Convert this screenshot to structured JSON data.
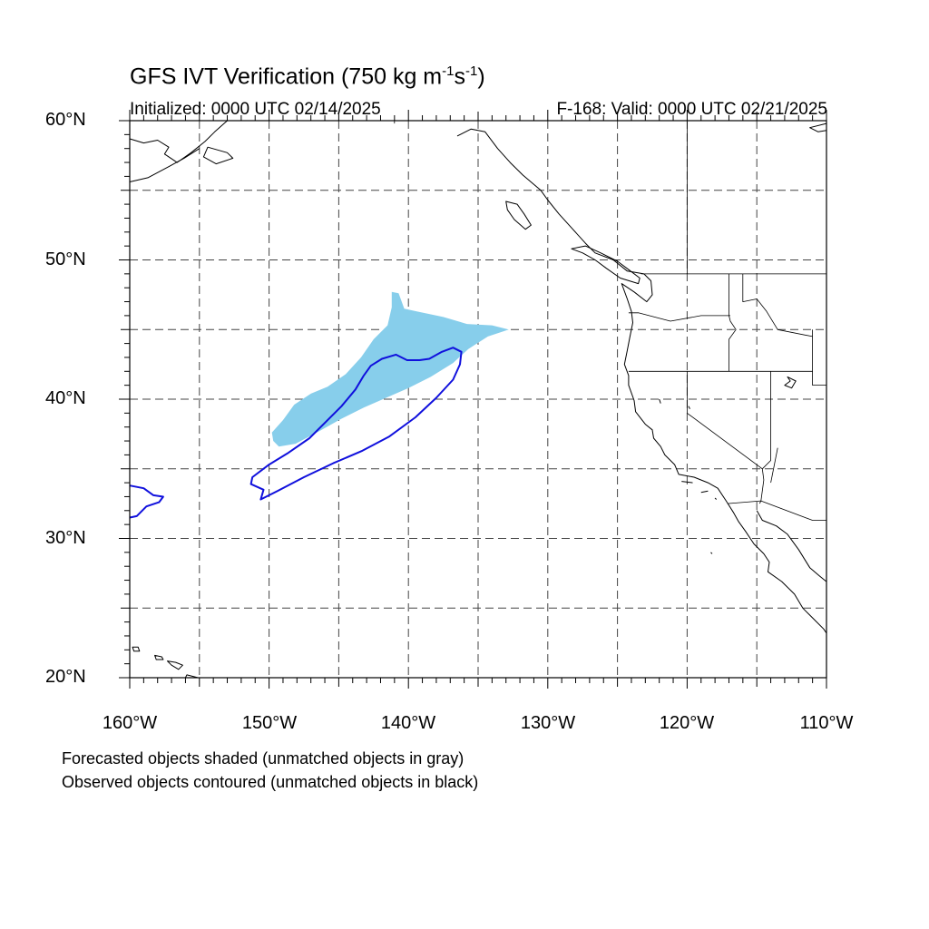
{
  "title": {
    "main": "GFS IVT Verification (750 kg m",
    "exp1": "-1",
    "mid": "s",
    "exp2": "-1",
    "close": ")"
  },
  "init_label": "Initialized: 0000 UTC 02/14/2025",
  "valid_label": "F-168: Valid: 0000 UTC 02/21/2025",
  "lat_labels": [
    "60°N",
    "50°N",
    "40°N",
    "30°N",
    "20°N"
  ],
  "lon_labels": [
    "160°W",
    "150°W",
    "140°W",
    "130°W",
    "120°W",
    "110°W"
  ],
  "footnotes": [
    "Forecasted objects shaded (unmatched objects in gray)",
    "Observed objects contoured (unmatched objects in black)"
  ],
  "map": {
    "lat_range": [
      20,
      60
    ],
    "lon_range": [
      -160,
      -110
    ],
    "grid_lat_step": 5,
    "grid_lon_step": 5,
    "forecast_color": "#87ceeb",
    "observed_color": "#1010dd",
    "coast_color": "#000000",
    "forecast_object": [
      [
        -149.7,
        37.0
      ],
      [
        -149.8,
        37.6
      ],
      [
        -149.0,
        38.5
      ],
      [
        -148.2,
        39.6
      ],
      [
        -147.0,
        40.4
      ],
      [
        -145.8,
        40.9
      ],
      [
        -144.5,
        41.8
      ],
      [
        -143.4,
        43.0
      ],
      [
        -142.5,
        44.3
      ],
      [
        -141.5,
        45.3
      ],
      [
        -141.2,
        46.6
      ],
      [
        -141.2,
        47.7
      ],
      [
        -140.7,
        47.6
      ],
      [
        -140.3,
        46.5
      ],
      [
        -139.4,
        46.3
      ],
      [
        -137.5,
        45.9
      ],
      [
        -135.8,
        45.4
      ],
      [
        -134.0,
        45.3
      ],
      [
        -132.8,
        45.0
      ],
      [
        -134.3,
        44.5
      ],
      [
        -135.7,
        43.6
      ],
      [
        -136.8,
        42.6
      ],
      [
        -138.4,
        41.6
      ],
      [
        -140.0,
        40.8
      ],
      [
        -141.6,
        40.1
      ],
      [
        -143.2,
        39.4
      ],
      [
        -144.8,
        38.6
      ],
      [
        -146.4,
        37.7
      ],
      [
        -148.1,
        36.8
      ],
      [
        -149.3,
        36.6
      ]
    ],
    "observed_object": [
      [
        -151.2,
        34.4
      ],
      [
        -150.0,
        35.3
      ],
      [
        -148.7,
        36.1
      ],
      [
        -147.1,
        37.2
      ],
      [
        -145.9,
        38.4
      ],
      [
        -144.8,
        39.5
      ],
      [
        -143.8,
        40.7
      ],
      [
        -143.2,
        41.7
      ],
      [
        -142.7,
        42.4
      ],
      [
        -141.9,
        42.9
      ],
      [
        -140.9,
        43.2
      ],
      [
        -140.1,
        42.8
      ],
      [
        -139.2,
        42.8
      ],
      [
        -138.5,
        42.9
      ],
      [
        -137.6,
        43.4
      ],
      [
        -136.8,
        43.7
      ],
      [
        -136.2,
        43.4
      ],
      [
        -136.3,
        42.5
      ],
      [
        -136.8,
        41.4
      ],
      [
        -138.0,
        40.1
      ],
      [
        -139.5,
        38.7
      ],
      [
        -141.4,
        37.3
      ],
      [
        -143.3,
        36.3
      ],
      [
        -145.4,
        35.4
      ],
      [
        -147.5,
        34.4
      ],
      [
        -149.4,
        33.4
      ],
      [
        -150.6,
        32.8
      ],
      [
        -150.4,
        33.5
      ],
      [
        -151.3,
        33.9
      ]
    ],
    "observed_object_west": [
      [
        -160.0,
        33.8
      ],
      [
        -159.0,
        33.6
      ],
      [
        -158.3,
        33.1
      ],
      [
        -157.6,
        33.0
      ],
      [
        -157.9,
        32.6
      ],
      [
        -158.8,
        32.3
      ],
      [
        -159.5,
        31.6
      ],
      [
        -160.0,
        31.5
      ]
    ],
    "coastline": [
      [
        -136.5,
        58.9
      ],
      [
        -135.5,
        59.4
      ],
      [
        -134.5,
        59.2
      ],
      [
        -133.6,
        58.0
      ],
      [
        -132.7,
        57.0
      ],
      [
        -131.8,
        56.1
      ],
      [
        -130.5,
        55.0
      ],
      [
        -130.0,
        54.3
      ],
      [
        -129.2,
        53.3
      ],
      [
        -128.2,
        52.2
      ],
      [
        -127.3,
        51.2
      ],
      [
        -126.6,
        50.5
      ],
      [
        -125.3,
        50.0
      ],
      [
        -124.3,
        49.2
      ],
      [
        -123.1,
        49.0
      ],
      [
        -122.6,
        48.5
      ],
      [
        -122.5,
        47.5
      ],
      [
        -122.9,
        47.0
      ],
      [
        -123.8,
        47.7
      ],
      [
        -124.7,
        48.3
      ],
      [
        -124.3,
        47.2
      ],
      [
        -124.0,
        46.3
      ],
      [
        -123.9,
        45.5
      ],
      [
        -124.1,
        44.5
      ],
      [
        -124.3,
        43.5
      ],
      [
        -124.5,
        42.5
      ],
      [
        -124.2,
        41.7
      ],
      [
        -124.2,
        41.0
      ],
      [
        -123.8,
        39.9
      ],
      [
        -123.7,
        39.1
      ],
      [
        -123.0,
        38.2
      ],
      [
        -122.5,
        37.8
      ],
      [
        -122.4,
        37.2
      ],
      [
        -121.9,
        36.6
      ],
      [
        -121.6,
        36.0
      ],
      [
        -120.9,
        35.3
      ],
      [
        -120.6,
        34.6
      ],
      [
        -119.5,
        34.4
      ],
      [
        -118.5,
        34.0
      ],
      [
        -117.8,
        33.6
      ],
      [
        -117.2,
        32.7
      ],
      [
        -116.7,
        31.9
      ],
      [
        -116.3,
        31.2
      ],
      [
        -115.8,
        30.5
      ],
      [
        -115.2,
        29.6
      ],
      [
        -114.5,
        28.9
      ],
      [
        -114.1,
        28.3
      ],
      [
        -114.2,
        27.6
      ],
      [
        -113.2,
        26.9
      ],
      [
        -112.3,
        26.0
      ],
      [
        -111.7,
        25.0
      ],
      [
        -111.0,
        24.3
      ],
      [
        -110.2,
        23.5
      ],
      [
        -110.0,
        23.2
      ]
    ],
    "gulf_coast": [
      [
        -115.0,
        32.0
      ],
      [
        -114.6,
        31.3
      ],
      [
        -113.6,
        30.9
      ],
      [
        -112.8,
        30.3
      ],
      [
        -112.0,
        29.2
      ],
      [
        -111.2,
        27.9
      ],
      [
        -110.5,
        27.3
      ],
      [
        -110.0,
        26.9
      ]
    ],
    "vancouver_island": [
      [
        -128.3,
        50.8
      ],
      [
        -127.5,
        50.5
      ],
      [
        -126.6,
        50.0
      ],
      [
        -125.8,
        49.4
      ],
      [
        -124.8,
        48.7
      ],
      [
        -123.5,
        48.3
      ],
      [
        -123.4,
        48.7
      ],
      [
        -124.2,
        49.3
      ],
      [
        -125.0,
        49.9
      ],
      [
        -126.2,
        50.5
      ],
      [
        -127.3,
        51.0
      ]
    ],
    "haida_gwaii": [
      [
        -133.0,
        54.2
      ],
      [
        -132.2,
        54.0
      ],
      [
        -131.7,
        53.3
      ],
      [
        -131.2,
        52.5
      ],
      [
        -131.6,
        52.2
      ],
      [
        -132.4,
        52.9
      ],
      [
        -132.9,
        53.6
      ]
    ],
    "hawaii": [
      [
        [
          -159.8,
          22.2
        ],
        [
          -159.4,
          22.2
        ],
        [
          -159.3,
          21.9
        ],
        [
          -159.7,
          21.9
        ]
      ],
      [
        [
          -158.2,
          21.6
        ],
        [
          -157.7,
          21.5
        ],
        [
          -157.6,
          21.3
        ],
        [
          -158.1,
          21.3
        ]
      ],
      [
        [
          -157.3,
          21.2
        ],
        [
          -156.7,
          21.1
        ],
        [
          -156.2,
          20.9
        ],
        [
          -156.5,
          20.6
        ],
        [
          -157.0,
          20.9
        ]
      ],
      [
        [
          -155.9,
          20.2
        ],
        [
          -155.1,
          19.8
        ],
        [
          -154.8,
          19.5
        ],
        [
          -155.4,
          19.1
        ],
        [
          -155.9,
          19.4
        ],
        [
          -156.0,
          19.8
        ]
      ]
    ],
    "alaska": [
      [
        -160.0,
        58.7
      ],
      [
        -159.0,
        58.4
      ],
      [
        -158.0,
        58.6
      ],
      [
        -157.2,
        58.1
      ],
      [
        -157.5,
        57.6
      ],
      [
        -156.6,
        57.0
      ],
      [
        -155.6,
        57.7
      ],
      [
        -154.6,
        58.5
      ],
      [
        -153.9,
        59.2
      ],
      [
        -153.0,
        60.0
      ]
    ],
    "alaska_west": [
      [
        -160.0,
        55.6
      ],
      [
        -158.7,
        55.9
      ],
      [
        -157.2,
        56.7
      ],
      [
        -156.1,
        57.3
      ],
      [
        -155.0,
        58.0
      ]
    ],
    "kodiak": [
      [
        -154.4,
        58.1
      ],
      [
        -153.0,
        57.7
      ],
      [
        -152.6,
        57.3
      ],
      [
        -153.8,
        56.9
      ],
      [
        -154.7,
        57.4
      ]
    ],
    "hudson_top_right": [
      [
        -110.0,
        59.8
      ],
      [
        -111.2,
        59.5
      ],
      [
        -110.6,
        59.2
      ],
      [
        -110.0,
        59.3
      ]
    ],
    "borders": [
      [
        [
          -141.0,
          60.0
        ],
        [
          -141.0,
          59.8
        ]
      ],
      [
        [
          -123.3,
          49.0
        ],
        [
          -110.0,
          49.0
        ]
      ],
      [
        [
          -120.0,
          60.0
        ],
        [
          -120.0,
          49.0
        ]
      ],
      [
        [
          -117.0,
          49.0
        ],
        [
          -117.0,
          46.0
        ],
        [
          -116.9,
          45.6
        ],
        [
          -116.5,
          45.0
        ],
        [
          -117.0,
          44.3
        ],
        [
          -117.0,
          42.0
        ]
      ],
      [
        [
          -124.2,
          42.0
        ],
        [
          -111.0,
          42.0
        ]
      ],
      [
        [
          -124.2,
          46.2
        ],
        [
          -123.5,
          46.2
        ],
        [
          -121.2,
          45.6
        ],
        [
          -119.0,
          46.0
        ],
        [
          -116.9,
          46.0
        ]
      ],
      [
        [
          -116.0,
          49.0
        ],
        [
          -116.0,
          47.0
        ],
        [
          -115.0,
          47.2
        ],
        [
          -114.3,
          46.3
        ],
        [
          -113.5,
          45.0
        ],
        [
          -111.0,
          44.5
        ]
      ],
      [
        [
          -111.0,
          45.0
        ],
        [
          -111.0,
          41.0
        ],
        [
          -110.0,
          41.0
        ]
      ],
      [
        [
          -114.0,
          42.0
        ],
        [
          -114.0,
          35.6
        ],
        [
          -114.6,
          35.0
        ]
      ],
      [
        [
          -120.0,
          42.0
        ],
        [
          -120.0,
          39.0
        ],
        [
          -114.6,
          35.0
        ]
      ],
      [
        [
          -114.6,
          35.0
        ],
        [
          -114.5,
          34.2
        ],
        [
          -114.7,
          32.7
        ]
      ],
      [
        [
          -117.1,
          32.5
        ],
        [
          -114.7,
          32.7
        ],
        [
          -111.0,
          31.3
        ],
        [
          -110.0,
          31.3
        ]
      ],
      [
        [
          -114.0,
          34.0
        ],
        [
          -113.5,
          36.5
        ]
      ],
      [
        [
          -114.7,
          32.7
        ],
        [
          -114.8,
          32.5
        ]
      ]
    ],
    "lakes": [
      [
        [
          -112.8,
          41.6
        ],
        [
          -112.2,
          41.3
        ],
        [
          -112.5,
          40.8
        ],
        [
          -113.0,
          41.0
        ],
        [
          -112.6,
          41.3
        ]
      ],
      [
        [
          -122.0,
          40.0
        ],
        [
          -121.9,
          39.7
        ]
      ],
      [
        [
          -119.9,
          39.5
        ],
        [
          -119.8,
          39.3
        ]
      ]
    ],
    "channel_islands": [
      [
        [
          -120.4,
          34.1
        ],
        [
          -119.6,
          34.0
        ]
      ],
      [
        [
          -119.0,
          33.3
        ],
        [
          -118.5,
          33.4
        ]
      ],
      [
        [
          -118.0,
          32.9
        ],
        [
          -117.9,
          32.8
        ]
      ],
      [
        [
          -118.3,
          29.0
        ],
        [
          -118.2,
          28.9
        ]
      ]
    ]
  }
}
